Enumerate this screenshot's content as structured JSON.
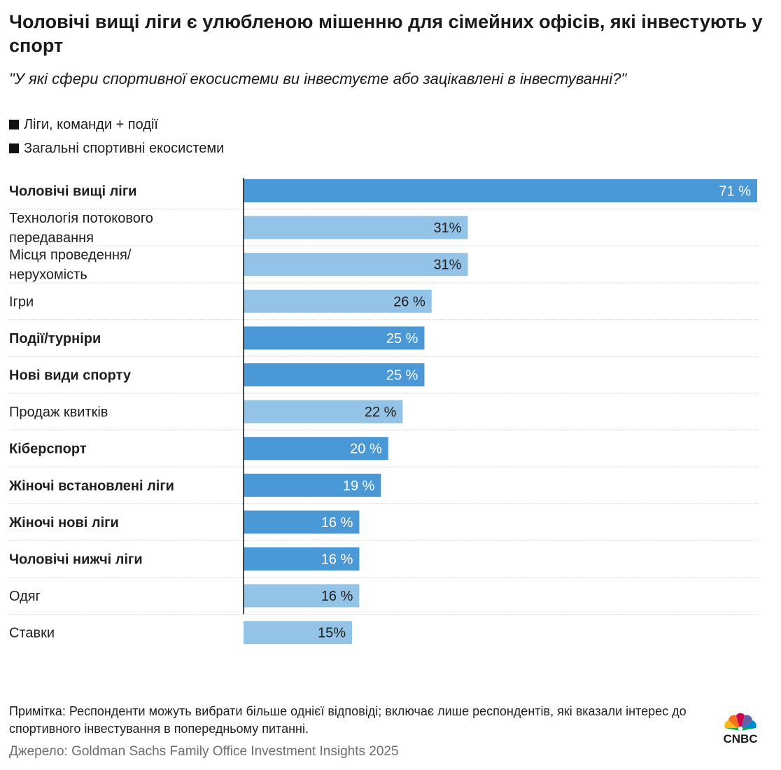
{
  "title": "Чоловічі вищі ліги є улюбленою мішенню для сімейних офісів, які інвестують у спорт",
  "subtitle": "\"У які сфери спортивної екосистеми ви інвестуєте або зацікавлені в інвестуванні?\"",
  "legend": [
    {
      "label": "Ліги, команди + події"
    },
    {
      "label": "Загальні спортивні екосистеми"
    }
  ],
  "colors": {
    "dark": "#4a98d6",
    "light": "#94c3e8",
    "axis": "#111111",
    "grid": "#d0d0d0"
  },
  "chart_data": {
    "type": "bar",
    "orientation": "horizontal",
    "title": "Чоловічі вищі ліги є улюбленою мішенню для сімейних офісів, які інвестують у спорт",
    "xlim": [
      0,
      71
    ],
    "series_names": [
      "Ліги, команди + події",
      "Загальні спортивні екосистеми"
    ],
    "categories": [
      {
        "label": [
          "Чоловічі вищі ліги"
        ],
        "value": 71,
        "display": "71 %",
        "series": 0
      },
      {
        "label": [
          "Технологія потокового",
          "передавання"
        ],
        "value": 31,
        "display": "31%",
        "series": 1
      },
      {
        "label": [
          "Місця проведення/",
          "нерухомість"
        ],
        "value": 31,
        "display": "31%",
        "series": 1
      },
      {
        "label": [
          "Ігри"
        ],
        "value": 26,
        "display": "26 %",
        "series": 1
      },
      {
        "label": [
          "Події/турніри"
        ],
        "value": 25,
        "display": "25 %",
        "series": 0
      },
      {
        "label": [
          "Нові види спорту"
        ],
        "value": 25,
        "display": "25 %",
        "series": 0
      },
      {
        "label": [
          "Продаж квитків"
        ],
        "value": 22,
        "display": "22 %",
        "series": 1
      },
      {
        "label": [
          "Кіберспорт"
        ],
        "value": 20,
        "display": "20 %",
        "series": 0
      },
      {
        "label": [
          "Жіночі встановлені ліги"
        ],
        "value": 19,
        "display": "19 %",
        "series": 0
      },
      {
        "label": [
          "Жіночі нові ліги"
        ],
        "value": 16,
        "display": "16 %",
        "series": 0
      },
      {
        "label": [
          "Чоловічі нижчі ліги"
        ],
        "value": 16,
        "display": "16 %",
        "series": 0
      },
      {
        "label": [
          "Одяг"
        ],
        "value": 16,
        "display": "16 %",
        "series": 1
      },
      {
        "label": [
          "Ставки"
        ],
        "value": 15,
        "display": "15%",
        "series": 1
      }
    ]
  },
  "footer": {
    "note": "Примітка: Респонденти можуть вибрати більше однієї відповіді; включає лише респондентів, які вказали інтерес до спортивного інвестування в попередньому питанні.",
    "source": "Джерело: Goldman Sachs Family Office Investment Insights 2025",
    "logo_text": "CNBC"
  }
}
